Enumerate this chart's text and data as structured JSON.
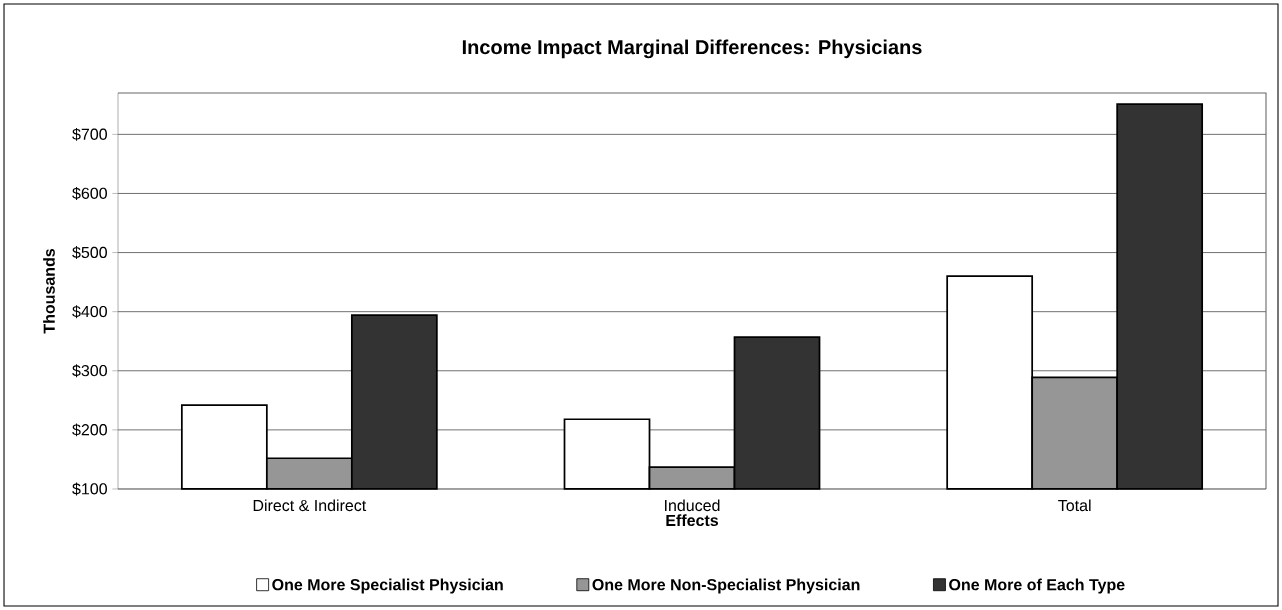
{
  "chart_data": {
    "type": "bar",
    "title": "Income Impact Marginal Differences: Physicians",
    "xlabel": "Effects",
    "ylabel": "Thousands",
    "categories": [
      "Direct & Indirect",
      "Induced",
      "Total"
    ],
    "series": [
      {
        "name": "One More Specialist Physician",
        "color": "#ffffff",
        "values": [
          242,
          218,
          460
        ]
      },
      {
        "name": "One More Non-Specialist Physician",
        "color": "#969696",
        "values": [
          152,
          137,
          289
        ]
      },
      {
        "name": "One More of Each Type",
        "color": "#333333",
        "values": [
          394,
          357,
          751
        ]
      }
    ],
    "ylim": [
      100,
      770
    ],
    "yticks": [
      {
        "value": 100,
        "label": "$100"
      },
      {
        "value": 200,
        "label": "$200"
      },
      {
        "value": 300,
        "label": "$300"
      },
      {
        "value": 400,
        "label": "$400"
      },
      {
        "value": 500,
        "label": "$500"
      },
      {
        "value": 600,
        "label": "$600"
      },
      {
        "value": 700,
        "label": "$700"
      }
    ],
    "grid": "y",
    "legend": "bottom"
  }
}
